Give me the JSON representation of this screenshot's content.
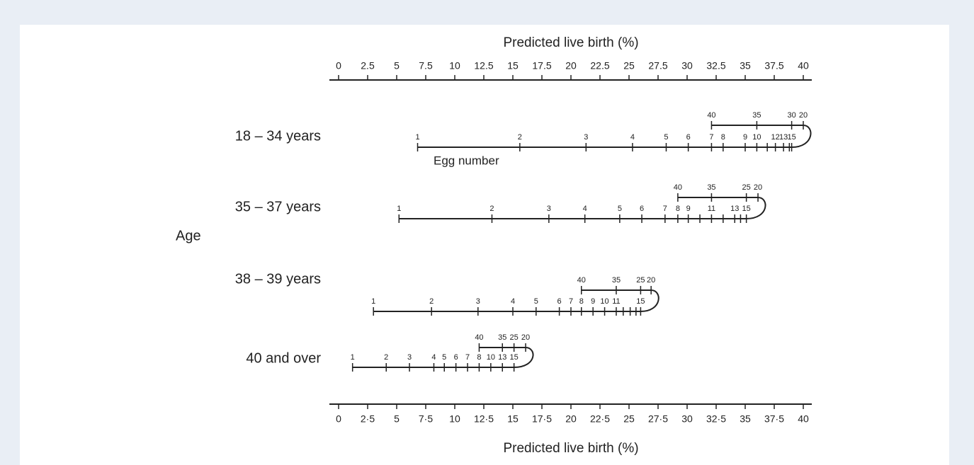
{
  "chart_data": {
    "type": "nomogram",
    "xlim": [
      0,
      40
    ],
    "y_label": "Age",
    "scale_label": "Egg number",
    "color": "#222222",
    "axes": [
      {
        "position": "top",
        "title": "Predicted live birth (%)",
        "ticks": [
          0,
          2.5,
          5,
          7.5,
          10,
          12.5,
          15,
          17.5,
          20,
          22.5,
          25,
          27.5,
          30,
          32.5,
          35,
          37.5,
          40
        ]
      },
      {
        "position": "bottom",
        "title": "Predicted live birth (%)",
        "ticks": [
          0,
          {
            "value": 2.5,
            "label": "2·5"
          },
          5,
          {
            "value": 7.5,
            "label": "7·5"
          },
          10,
          {
            "value": 12.5,
            "label": "12·5"
          },
          15,
          {
            "value": 17.5,
            "label": "17·5"
          },
          20,
          {
            "value": 22.5,
            "label": "22·5"
          },
          25,
          {
            "value": 27.5,
            "label": "27·5"
          },
          30,
          {
            "value": 32.5,
            "label": "32·5"
          },
          35,
          {
            "value": 37.5,
            "label": "37·5"
          },
          40
        ]
      }
    ],
    "series": [
      {
        "name": "18 – 34 years",
        "lower": {
          "categories": [
            1,
            2,
            3,
            4,
            5,
            6,
            7,
            8,
            9,
            10,
            null,
            12,
            13,
            null,
            15
          ],
          "values": [
            6.8,
            15.6,
            21.3,
            25.3,
            28.2,
            30.1,
            32.1,
            33.1,
            35.0,
            36.0,
            36.9,
            37.6,
            38.3,
            38.8,
            39.0
          ]
        },
        "upper": {
          "categories": [
            40,
            35,
            30,
            20
          ],
          "values": [
            32.1,
            36.0,
            39.0,
            40.0
          ]
        }
      },
      {
        "name": "35 – 37 years",
        "lower": {
          "categories": [
            1,
            2,
            3,
            4,
            5,
            6,
            7,
            8,
            9,
            null,
            11,
            null,
            13,
            null,
            15
          ],
          "values": [
            5.2,
            13.2,
            18.1,
            21.2,
            24.2,
            26.1,
            28.1,
            29.2,
            30.1,
            31.1,
            32.1,
            33.1,
            34.1,
            34.6,
            35.1
          ]
        },
        "upper": {
          "categories": [
            40,
            35,
            25,
            20
          ],
          "values": [
            29.2,
            32.1,
            35.1,
            36.1
          ]
        }
      },
      {
        "name": "38 – 39 years",
        "lower": {
          "categories": [
            1,
            2,
            3,
            4,
            5,
            6,
            7,
            8,
            9,
            10,
            11,
            null,
            null,
            null,
            15
          ],
          "values": [
            3.0,
            8.0,
            12.0,
            15.0,
            17.0,
            19.0,
            20.0,
            20.9,
            21.9,
            22.9,
            23.9,
            24.5,
            25.1,
            25.6,
            26.0
          ]
        },
        "upper": {
          "categories": [
            40,
            35,
            25,
            20
          ],
          "values": [
            20.9,
            23.9,
            26.0,
            26.9
          ]
        }
      },
      {
        "name": "40 and over",
        "lower": {
          "categories": [
            1,
            2,
            3,
            4,
            5,
            6,
            7,
            8,
            10,
            13,
            15
          ],
          "values": [
            1.2,
            4.1,
            6.1,
            8.2,
            9.1,
            10.1,
            11.1,
            12.1,
            13.1,
            14.1,
            15.1
          ]
        },
        "upper": {
          "categories": [
            40,
            35,
            25,
            20
          ],
          "values": [
            12.1,
            14.1,
            15.1,
            16.1
          ]
        }
      }
    ]
  }
}
